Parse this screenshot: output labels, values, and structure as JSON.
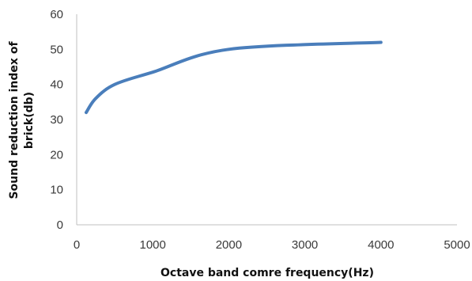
{
  "chart_data": {
    "type": "line",
    "title": "",
    "xlabel": "Octave band comre frequency(Hz)",
    "ylabel_lines": [
      "Sound reduction index of",
      "brick(db)"
    ],
    "xlim": [
      0,
      5000
    ],
    "ylim": [
      0,
      60
    ],
    "x_ticks": [
      0,
      1000,
      2000,
      3000,
      4000,
      5000
    ],
    "y_ticks": [
      0,
      10,
      20,
      30,
      40,
      50,
      60
    ],
    "grid": false,
    "legend": "none",
    "series_color": "#4a7ebb",
    "series": [
      {
        "x": [
          125,
          250,
          500,
          1000,
          2000,
          4000
        ],
        "values": [
          32,
          36,
          40,
          43.5,
          50,
          52
        ]
      }
    ]
  }
}
